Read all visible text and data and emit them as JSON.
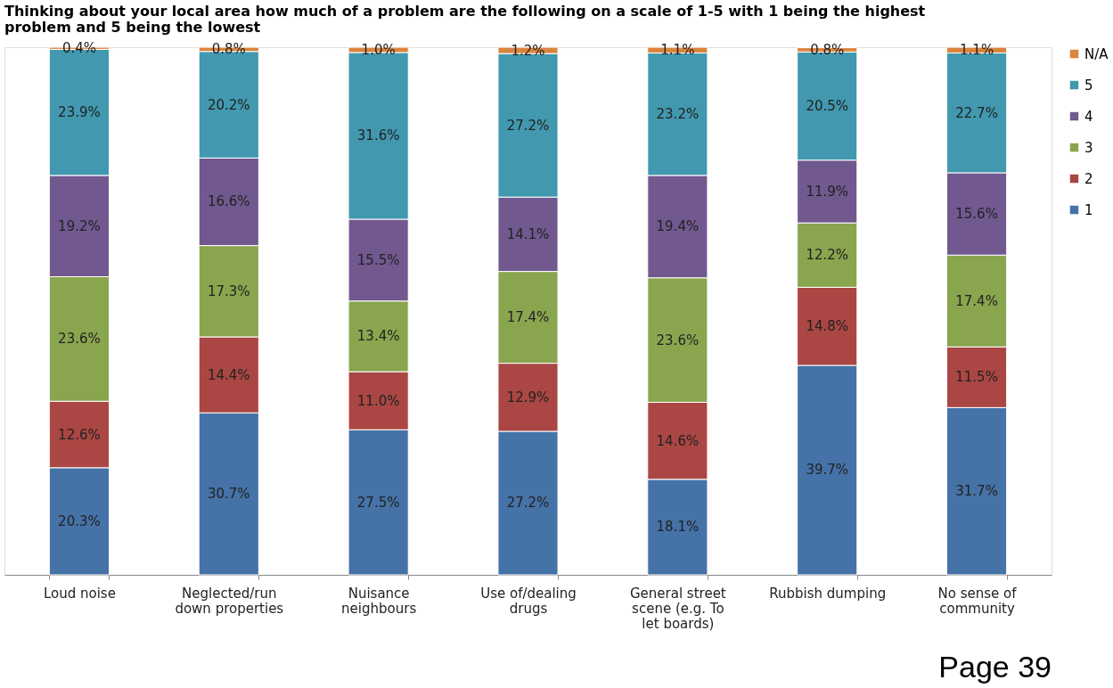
{
  "chart_data": {
    "type": "bar",
    "stacked": true,
    "title": "Thinking about your local area how much of a problem are the following on a scale of 1-5 with 1 being the highest problem and 5 being the lowest",
    "categories": [
      "Loud noise",
      "Neglected/run down properties",
      "Nuisance neighbours",
      "Use of/dealing drugs",
      "General street scene (e.g. To let boards)",
      "Rubbish dumping",
      "No sense of community"
    ],
    "ylim": [
      0,
      100
    ],
    "tick_labels": "x",
    "grid": false,
    "legend": "right",
    "series": [
      {
        "name": "1",
        "color": "#4572a7",
        "values": [
          20.3,
          30.7,
          27.5,
          27.2,
          18.1,
          39.7,
          31.7
        ],
        "value_labels": [
          "20.3%",
          "30.7%",
          "27.5%",
          "27.2%",
          "18.1%",
          "39.7%",
          "31.7%"
        ]
      },
      {
        "name": "2",
        "color": "#aa4643",
        "values": [
          12.6,
          14.4,
          11.0,
          12.9,
          14.6,
          14.8,
          11.5
        ],
        "value_labels": [
          "12.6%",
          "14.4%",
          "11.0%",
          "12.9%",
          "14.6%",
          "14.8%",
          "11.5%"
        ]
      },
      {
        "name": "3",
        "color": "#89a54e",
        "values": [
          23.6,
          17.3,
          13.4,
          17.4,
          23.6,
          12.2,
          17.4
        ],
        "value_labels": [
          "23.6%",
          "17.3%",
          "13.4%",
          "17.4%",
          "23.6%",
          "12.2%",
          "17.4%"
        ]
      },
      {
        "name": "4",
        "color": "#71588f",
        "values": [
          19.2,
          16.6,
          15.5,
          14.1,
          19.4,
          11.9,
          15.6
        ],
        "value_labels": [
          "19.2%",
          "16.6%",
          "15.5%",
          "14.1%",
          "19.4%",
          "11.9%",
          "15.6%"
        ]
      },
      {
        "name": "5",
        "color": "#4198af",
        "values": [
          23.9,
          20.2,
          31.6,
          27.2,
          23.2,
          20.5,
          22.7
        ],
        "value_labels": [
          "23.9%",
          "20.2%",
          "31.6%",
          "27.2%",
          "23.2%",
          "20.5%",
          "22.7%"
        ]
      },
      {
        "name": "N/A",
        "color": "#db843d",
        "values": [
          0.4,
          0.8,
          1.0,
          1.2,
          1.1,
          0.8,
          1.1
        ],
        "value_labels": [
          "0.4%",
          "0.8%",
          "1.0%",
          "1.2%",
          "1.1%",
          "0.8%",
          "1.1%"
        ]
      }
    ],
    "annotations": [
      "Page 39"
    ]
  }
}
